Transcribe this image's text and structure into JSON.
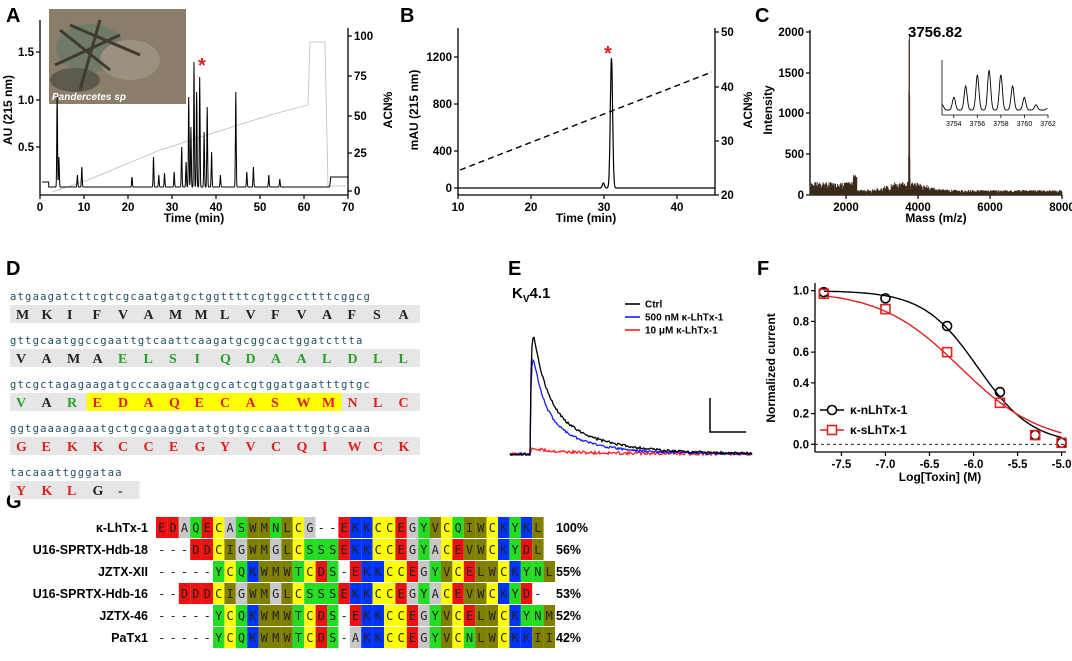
{
  "panels": {
    "A": "A",
    "B": "B",
    "C": "C",
    "D": "D",
    "E": "E",
    "F": "F",
    "G": "G"
  },
  "panelA": {
    "photo_label": "Pandercetes sp",
    "ylabel_left": "AU (215 nm)",
    "ylabel_right": "ACN%",
    "xlabel": "Time (min)",
    "yticks_left": [
      "1.5",
      "1.0",
      "0.5"
    ],
    "yticks_right": [
      "100",
      "75",
      "50",
      "25",
      "0"
    ],
    "xticks": [
      "0",
      "10",
      "20",
      "30",
      "40",
      "50",
      "60",
      "70"
    ],
    "marker": "*"
  },
  "panelB": {
    "ylabel_left": "mAU (215 nm)",
    "ylabel_right": "ACN%",
    "xlabel": "Time (min)",
    "yticks_left": [
      "1200",
      "800",
      "400",
      "0"
    ],
    "yticks_right": [
      "50",
      "40",
      "30",
      "20"
    ],
    "xticks": [
      "10",
      "20",
      "30",
      "40"
    ],
    "marker": "*"
  },
  "panelC": {
    "peak_label": "3756.82",
    "ylabel": "Intensity",
    "xlabel": "Mass (m/z)",
    "yticks": [
      "2000",
      "1500",
      "1000",
      "500",
      "0"
    ],
    "xticks": [
      "2000",
      "4000",
      "6000",
      "8000"
    ],
    "inset_xticks": [
      "3754",
      "3756",
      "3758",
      "3760",
      "3762"
    ]
  },
  "panelD": {
    "rows": [
      {
        "dna": "atgaagatcttcgtcgcaatgatgctggttttcgtggccttttcggcg",
        "aa": [
          [
            "M",
            "k"
          ],
          [
            "K",
            "k"
          ],
          [
            "I",
            "k"
          ],
          [
            "F",
            "k"
          ],
          [
            "V",
            "k"
          ],
          [
            "A",
            "k"
          ],
          [
            "M",
            "k"
          ],
          [
            "M",
            "k"
          ],
          [
            "L",
            "k"
          ],
          [
            "V",
            "k"
          ],
          [
            "F",
            "k"
          ],
          [
            "V",
            "k"
          ],
          [
            "A",
            "k"
          ],
          [
            "F",
            "k"
          ],
          [
            "S",
            "k"
          ],
          [
            "A",
            "k"
          ]
        ]
      },
      {
        "dna": "gttgcaatggccgaattgtcaattcaagatgcggcactggatcttta",
        "aa": [
          [
            "V",
            "k"
          ],
          [
            "A",
            "k"
          ],
          [
            "M",
            "k"
          ],
          [
            "A",
            "k"
          ],
          [
            "E",
            "g"
          ],
          [
            "L",
            "g"
          ],
          [
            "S",
            "g"
          ],
          [
            "I",
            "g"
          ],
          [
            "Q",
            "g"
          ],
          [
            "D",
            "g"
          ],
          [
            "A",
            "g"
          ],
          [
            "A",
            "g"
          ],
          [
            "L",
            "g"
          ],
          [
            "D",
            "g"
          ],
          [
            "L",
            "g"
          ],
          [
            "L",
            "g"
          ]
        ]
      },
      {
        "dna": "gtcgctagagaagatgcccaagaatgcgcatcgtggatgaatttgtgc",
        "aa": [
          [
            "V",
            "g"
          ],
          [
            "A",
            "k"
          ],
          [
            "R",
            "g"
          ],
          [
            "E",
            "r"
          ],
          [
            "D",
            "r"
          ],
          [
            "A",
            "r"
          ],
          [
            "Q",
            "r"
          ],
          [
            "E",
            "r"
          ],
          [
            "C",
            "r"
          ],
          [
            "A",
            "r"
          ],
          [
            "S",
            "r"
          ],
          [
            "W",
            "r"
          ],
          [
            "M",
            "r"
          ],
          [
            "N",
            "r"
          ],
          [
            "L",
            "r"
          ],
          [
            "C",
            "r"
          ]
        ]
      },
      {
        "dna": "ggtgaaaagaaatgctgcgaaggatatgtgtgccaaatttggtgcaaa",
        "aa": [
          [
            "G",
            "r"
          ],
          [
            "E",
            "r"
          ],
          [
            "K",
            "r"
          ],
          [
            "K",
            "r"
          ],
          [
            "C",
            "r"
          ],
          [
            "C",
            "r"
          ],
          [
            "E",
            "r"
          ],
          [
            "G",
            "r"
          ],
          [
            "Y",
            "r"
          ],
          [
            "V",
            "r"
          ],
          [
            "C",
            "r"
          ],
          [
            "Q",
            "r"
          ],
          [
            "I",
            "r"
          ],
          [
            "W",
            "r"
          ],
          [
            "C",
            "r"
          ],
          [
            "K",
            "r"
          ]
        ]
      },
      {
        "dna": "tacaaattgggataa",
        "aa": [
          [
            "Y",
            "r"
          ],
          [
            "K",
            "r"
          ],
          [
            "L",
            "r"
          ],
          [
            "G",
            "k"
          ],
          [
            "-",
            "k"
          ]
        ]
      }
    ]
  },
  "panelE": {
    "title": "KV4.1",
    "legend": [
      {
        "label": "Ctrl",
        "color": "#000000"
      },
      {
        "label": "500 nM κ-LhTx-1",
        "color": "#1a1aff"
      },
      {
        "label": "10 μM κ-LhTx-1",
        "color": "#ff2020"
      }
    ]
  },
  "panelF": {
    "ylabel": "Normalized current",
    "xlabel": "Log[Toxin] (M)",
    "yticks": [
      "1.0",
      "0.8",
      "0.6",
      "0.4",
      "0.2",
      "0.0"
    ],
    "xticks": [
      "-7.5",
      "-7.0",
      "-6.5",
      "-6.0",
      "-5.5",
      "-5.0"
    ],
    "legend": [
      {
        "label": "κ-nLhTx-1",
        "color": "#000000"
      },
      {
        "label": "κ-sLhTx-1",
        "color": "#e02020"
      }
    ]
  },
  "chart_data": [
    {
      "type": "scatter",
      "title": "",
      "xlabel": "Log[Toxin] (M)",
      "ylabel": "Normalized current",
      "xlim": [
        -7.8,
        -4.95
      ],
      "ylim": [
        -0.05,
        1.05
      ],
      "series": [
        {
          "name": "κ-nLhTx-1",
          "x": [
            -7.7,
            -7.0,
            -6.3,
            -5.7,
            -5.3,
            -5.0
          ],
          "y": [
            0.99,
            0.95,
            0.77,
            0.34,
            0.06,
            0.01
          ]
        },
        {
          "name": "κ-sLhTx-1",
          "x": [
            -7.7,
            -7.0,
            -6.3,
            -5.7,
            -5.3,
            -5.0
          ],
          "y": [
            0.98,
            0.88,
            0.6,
            0.27,
            0.06,
            0.01
          ]
        }
      ]
    }
  ],
  "panelG": {
    "rows": [
      {
        "name": "κ-LhTx-1",
        "seq": "EDAQECASWMNLCG--EKKCCEGYVCQIWCKYKL",
        "pct": "100%"
      },
      {
        "name": "U16-SPRTX-Hdb-18",
        "seq": "---DDCIGWMGLCSSSEKKCCEGYACEVWCKYDL",
        "pct": "56%"
      },
      {
        "name": "JZTX-XII",
        "seq": "-----YCQKWMWTCDS-EKKCCEGYVCELWCKYNL",
        "pct": "55%"
      },
      {
        "name": "U16-SPRTX-Hdb-16",
        "seq": "--DDDCIGWMGLCSSSEKKCCEGYACEVWCKYD-",
        "pct": "53%"
      },
      {
        "name": "JZTX-46",
        "seq": "-----YCQKWMWTCDS-EKKCCEGYVCELWCKYNM",
        "pct": "52%"
      },
      {
        "name": "PaTx1",
        "seq": "-----YCQKWMWTCDS-AKKCCEGYVCNLWCKKII",
        "pct": "42%"
      }
    ]
  }
}
